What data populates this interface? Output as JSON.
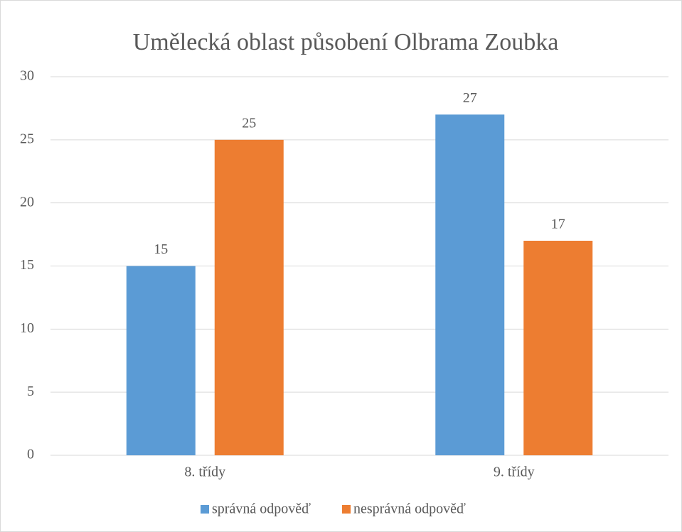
{
  "chart_data": {
    "type": "bar",
    "title": "Umělecká oblast působení Olbrama Zoubka",
    "categories": [
      "8. třídy",
      "9. třídy"
    ],
    "series": [
      {
        "name": "správná odpověď",
        "color": "#5b9bd5",
        "values": [
          15,
          27
        ]
      },
      {
        "name": "nesprávná odpověď",
        "color": "#ed7d31",
        "values": [
          25,
          17
        ]
      }
    ],
    "ylim": [
      0,
      30
    ],
    "yticks": [
      0,
      5,
      10,
      15,
      20,
      25,
      30
    ],
    "grid": true,
    "legend": "bottom",
    "data_labels": true
  }
}
